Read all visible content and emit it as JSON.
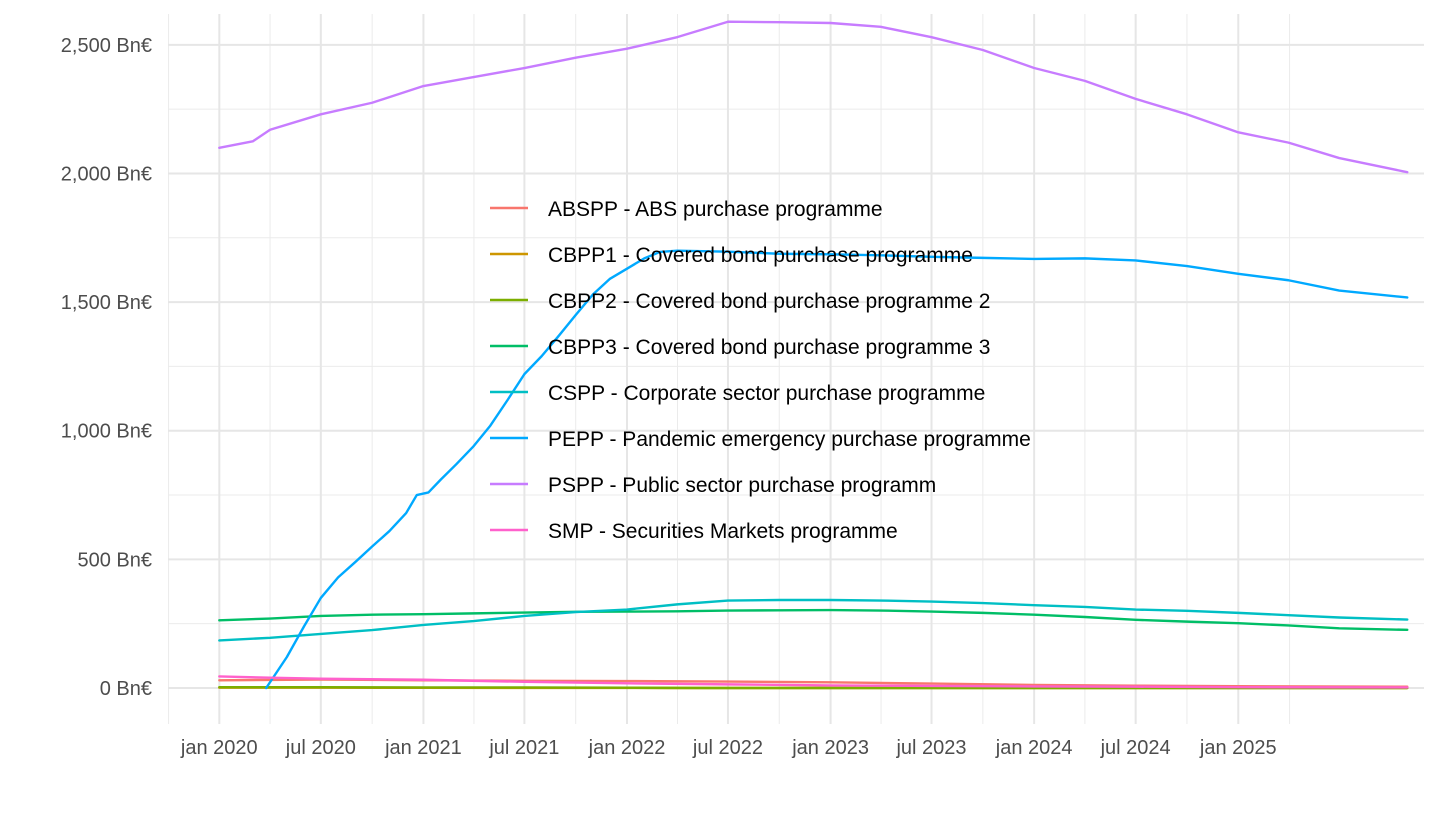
{
  "chart_data": {
    "type": "line",
    "title": "",
    "xlabel": "",
    "ylabel": "",
    "x_range": [
      "2019-10-01",
      "2025-11-30"
    ],
    "ylim": [
      -140,
      2620
    ],
    "grid": true,
    "legend_position": "inside-center",
    "x_ticks": [
      {
        "date": "2020-01-01",
        "label": "jan 2020"
      },
      {
        "date": "2020-07-01",
        "label": "jul 2020"
      },
      {
        "date": "2021-01-01",
        "label": "jan 2021"
      },
      {
        "date": "2021-07-01",
        "label": "jul 2021"
      },
      {
        "date": "2022-01-01",
        "label": "jan 2022"
      },
      {
        "date": "2022-07-01",
        "label": "jul 2022"
      },
      {
        "date": "2023-01-01",
        "label": "jan 2023"
      },
      {
        "date": "2023-07-01",
        "label": "jul 2023"
      },
      {
        "date": "2024-01-01",
        "label": "jan 2024"
      },
      {
        "date": "2024-07-01",
        "label": "jul 2024"
      },
      {
        "date": "2025-01-01",
        "label": "jan 2025"
      }
    ],
    "y_ticks": [
      {
        "value": 0,
        "label": "0 Bn€"
      },
      {
        "value": 500,
        "label": "500 Bn€"
      },
      {
        "value": 1000,
        "label": "1,000 Bn€"
      },
      {
        "value": 1500,
        "label": "1,500 Bn€"
      },
      {
        "value": 2000,
        "label": "2,000 Bn€"
      },
      {
        "value": 2500,
        "label": "2,500 Bn€"
      }
    ],
    "series": [
      {
        "name": "ABSPP - ABS purchase programme",
        "color": "#F8766D",
        "points": [
          [
            "2020-01-01",
            30
          ],
          [
            "2020-07-01",
            33
          ],
          [
            "2021-01-01",
            30
          ],
          [
            "2021-07-01",
            28
          ],
          [
            "2022-01-01",
            27
          ],
          [
            "2022-07-01",
            25
          ],
          [
            "2023-01-01",
            22
          ],
          [
            "2023-07-01",
            17
          ],
          [
            "2024-01-01",
            12
          ],
          [
            "2024-07-01",
            9
          ],
          [
            "2025-01-01",
            7
          ],
          [
            "2025-10-31",
            5
          ]
        ]
      },
      {
        "name": "CBPP1 - Covered bond purchase programme",
        "color": "#CD9600",
        "points": [
          [
            "2020-01-01",
            1
          ],
          [
            "2020-07-01",
            1
          ],
          [
            "2021-01-01",
            0.5
          ],
          [
            "2022-01-01",
            0.3
          ],
          [
            "2022-03-15",
            0
          ],
          [
            "2025-10-31",
            0
          ]
        ]
      },
      {
        "name": "CBPP2 - Covered bond purchase programme 2",
        "color": "#7CAE00",
        "points": [
          [
            "2020-01-01",
            3
          ],
          [
            "2020-07-01",
            3
          ],
          [
            "2021-01-01",
            2
          ],
          [
            "2021-07-01",
            2
          ],
          [
            "2022-01-01",
            1
          ],
          [
            "2022-06-01",
            0
          ],
          [
            "2025-10-31",
            0
          ]
        ]
      },
      {
        "name": "CBPP3 - Covered bond purchase programme 3",
        "color": "#00BE67",
        "points": [
          [
            "2020-01-01",
            263
          ],
          [
            "2020-04-01",
            270
          ],
          [
            "2020-07-01",
            280
          ],
          [
            "2020-10-01",
            285
          ],
          [
            "2021-01-01",
            287
          ],
          [
            "2021-04-01",
            290
          ],
          [
            "2021-07-01",
            293
          ],
          [
            "2021-10-01",
            296
          ],
          [
            "2022-01-01",
            297
          ],
          [
            "2022-04-01",
            298
          ],
          [
            "2022-07-01",
            301
          ],
          [
            "2022-10-01",
            302
          ],
          [
            "2023-01-01",
            303
          ],
          [
            "2023-04-01",
            301
          ],
          [
            "2023-07-01",
            297
          ],
          [
            "2023-10-01",
            292
          ],
          [
            "2024-01-01",
            285
          ],
          [
            "2024-04-01",
            276
          ],
          [
            "2024-07-01",
            265
          ],
          [
            "2024-10-01",
            258
          ],
          [
            "2025-01-01",
            252
          ],
          [
            "2025-04-01",
            243
          ],
          [
            "2025-07-01",
            232
          ],
          [
            "2025-10-31",
            226
          ]
        ]
      },
      {
        "name": "CSPP - Corporate sector purchase programme",
        "color": "#00BFC4",
        "points": [
          [
            "2020-01-01",
            185
          ],
          [
            "2020-04-01",
            195
          ],
          [
            "2020-07-01",
            210
          ],
          [
            "2020-10-01",
            225
          ],
          [
            "2021-01-01",
            245
          ],
          [
            "2021-04-01",
            260
          ],
          [
            "2021-07-01",
            280
          ],
          [
            "2021-10-01",
            295
          ],
          [
            "2022-01-01",
            305
          ],
          [
            "2022-04-01",
            325
          ],
          [
            "2022-07-01",
            340
          ],
          [
            "2022-10-01",
            342
          ],
          [
            "2023-01-01",
            342
          ],
          [
            "2023-04-01",
            340
          ],
          [
            "2023-07-01",
            336
          ],
          [
            "2023-10-01",
            330
          ],
          [
            "2024-01-01",
            322
          ],
          [
            "2024-04-01",
            315
          ],
          [
            "2024-07-01",
            305
          ],
          [
            "2024-10-01",
            300
          ],
          [
            "2025-01-01",
            292
          ],
          [
            "2025-04-01",
            283
          ],
          [
            "2025-07-01",
            274
          ],
          [
            "2025-10-31",
            266
          ]
        ]
      },
      {
        "name": "PEPP - Pandemic emergency purchase programme",
        "color": "#00A9FF",
        "points": [
          [
            "2020-03-25",
            0
          ],
          [
            "2020-05-01",
            120
          ],
          [
            "2020-06-01",
            240
          ],
          [
            "2020-07-01",
            350
          ],
          [
            "2020-08-01",
            430
          ],
          [
            "2020-09-01",
            490
          ],
          [
            "2020-10-01",
            550
          ],
          [
            "2020-11-01",
            610
          ],
          [
            "2020-12-01",
            680
          ],
          [
            "2020-12-20",
            750
          ],
          [
            "2021-01-10",
            760
          ],
          [
            "2021-02-01",
            810
          ],
          [
            "2021-03-01",
            870
          ],
          [
            "2021-04-01",
            940
          ],
          [
            "2021-05-01",
            1020
          ],
          [
            "2021-06-01",
            1120
          ],
          [
            "2021-07-01",
            1220
          ],
          [
            "2021-08-01",
            1290
          ],
          [
            "2021-09-01",
            1370
          ],
          [
            "2021-10-01",
            1450
          ],
          [
            "2021-11-01",
            1530
          ],
          [
            "2021-12-01",
            1590
          ],
          [
            "2022-01-01",
            1630
          ],
          [
            "2022-02-01",
            1670
          ],
          [
            "2022-03-01",
            1695
          ],
          [
            "2022-04-01",
            1700
          ],
          [
            "2022-07-01",
            1696
          ],
          [
            "2022-10-01",
            1688
          ],
          [
            "2023-01-01",
            1686
          ],
          [
            "2023-04-01",
            1682
          ],
          [
            "2023-07-01",
            1676
          ],
          [
            "2023-10-01",
            1672
          ],
          [
            "2024-01-01",
            1668
          ],
          [
            "2024-04-01",
            1670
          ],
          [
            "2024-07-01",
            1662
          ],
          [
            "2024-10-01",
            1640
          ],
          [
            "2025-01-01",
            1610
          ],
          [
            "2025-04-01",
            1585
          ],
          [
            "2025-07-01",
            1545
          ],
          [
            "2025-10-31",
            1518
          ]
        ]
      },
      {
        "name": "PSPP - Public sector purchase programm",
        "color": "#C77CFF",
        "points": [
          [
            "2020-01-01",
            2100
          ],
          [
            "2020-03-01",
            2125
          ],
          [
            "2020-04-01",
            2170
          ],
          [
            "2020-07-01",
            2230
          ],
          [
            "2020-10-01",
            2275
          ],
          [
            "2021-01-01",
            2340
          ],
          [
            "2021-04-01",
            2375
          ],
          [
            "2021-07-01",
            2410
          ],
          [
            "2021-10-01",
            2450
          ],
          [
            "2022-01-01",
            2485
          ],
          [
            "2022-04-01",
            2530
          ],
          [
            "2022-07-01",
            2590
          ],
          [
            "2022-10-01",
            2588
          ],
          [
            "2023-01-01",
            2585
          ],
          [
            "2023-04-01",
            2570
          ],
          [
            "2023-07-01",
            2530
          ],
          [
            "2023-10-01",
            2480
          ],
          [
            "2024-01-01",
            2410
          ],
          [
            "2024-04-01",
            2360
          ],
          [
            "2024-07-01",
            2290
          ],
          [
            "2024-10-01",
            2230
          ],
          [
            "2025-01-01",
            2160
          ],
          [
            "2025-04-01",
            2120
          ],
          [
            "2025-07-01",
            2060
          ],
          [
            "2025-10-31",
            2005
          ]
        ]
      },
      {
        "name": "SMP - Securities Markets programme",
        "color": "#FF61CC",
        "points": [
          [
            "2020-01-01",
            45
          ],
          [
            "2020-04-01",
            40
          ],
          [
            "2020-07-01",
            36
          ],
          [
            "2021-01-01",
            32
          ],
          [
            "2021-07-01",
            24
          ],
          [
            "2022-01-01",
            18
          ],
          [
            "2022-07-01",
            14
          ],
          [
            "2023-01-01",
            10
          ],
          [
            "2023-07-01",
            8
          ],
          [
            "2024-01-01",
            6
          ],
          [
            "2024-07-01",
            5
          ],
          [
            "2025-01-01",
            3
          ],
          [
            "2025-10-31",
            2
          ]
        ]
      }
    ]
  }
}
